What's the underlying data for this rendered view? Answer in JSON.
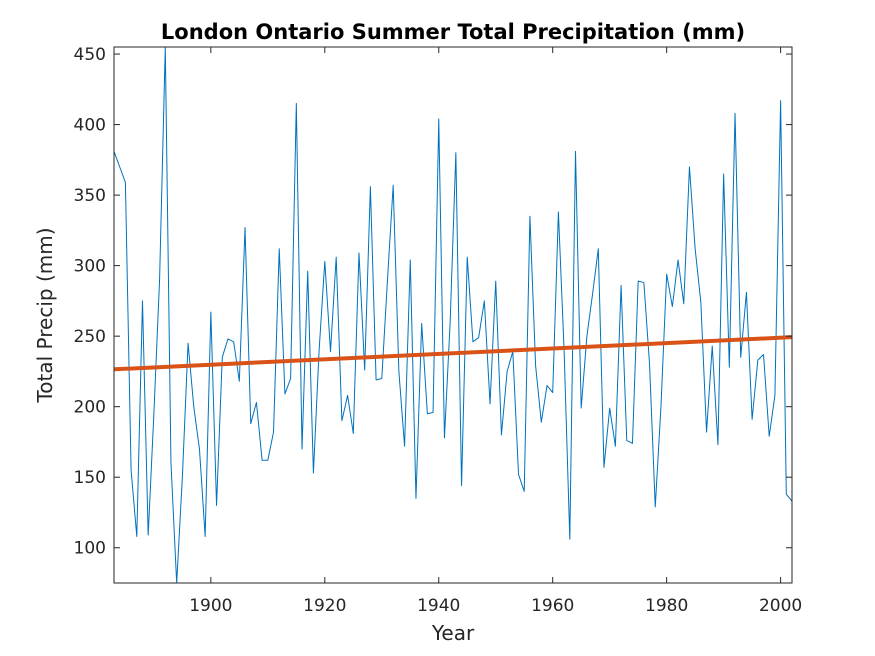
{
  "chart_data": {
    "type": "line",
    "title": "London Ontario Summer Total Precipitation (mm)",
    "xlabel": "Year",
    "ylabel": "Total Precip (mm)",
    "xlim": [
      1883,
      2002
    ],
    "ylim": [
      75,
      455
    ],
    "xticks": [
      1900,
      1920,
      1940,
      1960,
      1980,
      2000
    ],
    "yticks": [
      100,
      150,
      200,
      250,
      300,
      350,
      400,
      450
    ],
    "grid": false,
    "series": [
      {
        "style": "line",
        "color": "#0072BD",
        "x": [
          1883,
          1884,
          1885,
          1886,
          1887,
          1888,
          1889,
          1890,
          1891,
          1892,
          1893,
          1894,
          1895,
          1896,
          1897,
          1898,
          1899,
          1900,
          1901,
          1902,
          1903,
          1904,
          1905,
          1906,
          1907,
          1908,
          1909,
          1910,
          1911,
          1912,
          1913,
          1914,
          1915,
          1916,
          1917,
          1918,
          1919,
          1920,
          1921,
          1922,
          1923,
          1924,
          1925,
          1926,
          1927,
          1928,
          1929,
          1930,
          1931,
          1932,
          1933,
          1934,
          1935,
          1936,
          1937,
          1938,
          1939,
          1940,
          1941,
          1942,
          1943,
          1944,
          1945,
          1946,
          1947,
          1948,
          1949,
          1950,
          1951,
          1952,
          1953,
          1954,
          1955,
          1956,
          1957,
          1958,
          1959,
          1960,
          1961,
          1962,
          1963,
          1964,
          1965,
          1966,
          1967,
          1968,
          1969,
          1970,
          1971,
          1972,
          1973,
          1974,
          1975,
          1976,
          1977,
          1978,
          1979,
          1980,
          1981,
          1982,
          1983,
          1984,
          1985,
          1986,
          1987,
          1988,
          1989,
          1990,
          1991,
          1992,
          1993,
          1994,
          1995,
          1996,
          1997,
          1998,
          1999,
          2000,
          2001,
          2002
        ],
        "y": [
          381,
          370,
          359,
          155,
          108,
          275,
          109,
          195,
          290,
          455,
          160,
          75,
          150,
          245,
          200,
          170,
          108,
          267,
          130,
          235,
          248,
          246,
          218,
          327,
          188,
          203,
          162,
          162,
          182,
          312,
          209,
          220,
          415,
          170,
          296,
          153,
          240,
          303,
          239,
          306,
          190,
          208,
          181,
          309,
          226,
          356,
          219,
          220,
          290,
          357,
          225,
          172,
          304,
          135,
          259,
          195,
          196,
          404,
          178,
          260,
          380,
          144,
          306,
          246,
          249,
          275,
          202,
          289,
          180,
          225,
          239,
          152,
          140,
          335,
          229,
          189,
          215,
          210,
          338,
          240,
          106,
          381,
          199,
          250,
          280,
          312,
          157,
          199,
          172,
          286,
          176,
          174,
          289,
          288,
          230,
          129,
          200,
          294,
          271,
          304,
          273,
          370,
          312,
          274,
          182,
          243,
          173,
          365,
          228,
          408,
          235,
          281,
          191,
          233,
          237,
          179,
          208,
          417,
          138,
          133
        ]
      },
      {
        "style": "trend",
        "color": "#D95319",
        "x": [
          1883,
          2002
        ],
        "y": [
          226.5,
          249.3
        ]
      }
    ]
  }
}
